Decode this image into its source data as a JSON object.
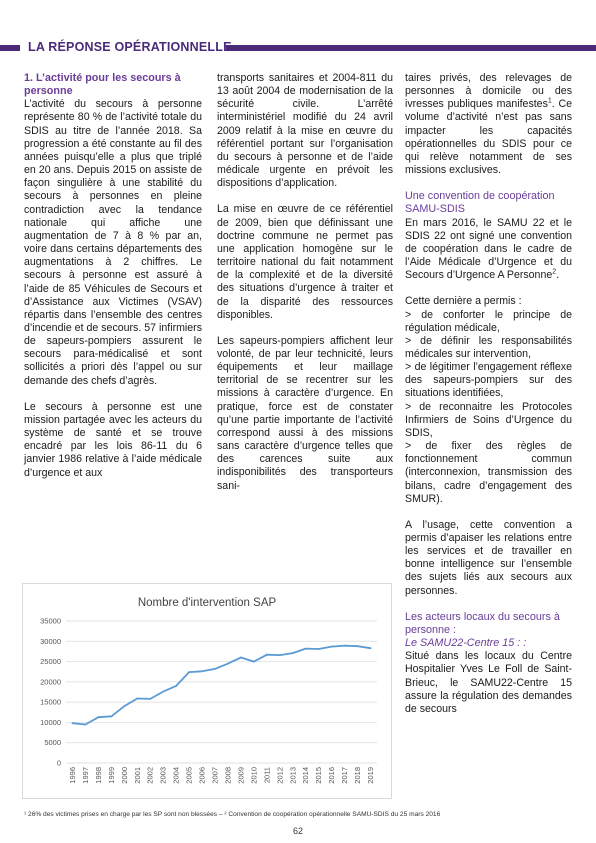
{
  "header": {
    "title": "LA RÉPONSE OPÉRATIONNELLE"
  },
  "col1": {
    "heading": "1. L’activité pour les secours à personne",
    "p1": "L’activité du secours à personne représente 80 % de l’activité totale du SDIS au titre de l’année 2018. Sa progression a été constante au fil des années puisqu’elle a plus que triplé en 20 ans. Depuis 2015 on assiste de façon singulière à une stabilité du secours à personnes en pleine contradiction avec la tendance nationale qui affiche une augmentation de 7 à 8 % par an, voire dans certains départements des augmentations à 2 chiffres. Le secours à personne est assuré à l’aide de 85 Véhicules de Secours et d’Assistance aux Victimes (VSAV) répartis dans l’ensemble des centres d’incendie et de secours. 57 infirmiers de sapeurs-pompiers assurent le secours para-médicalisé et sont sollicités a priori dès l’appel ou sur demande des chefs d’agrès.",
    "p2": "Le secours à personne est une mission partagée avec les acteurs du système de santé et se trouve encadré par les lois 86-11 du 6 janvier 1986 relative à l’aide médicale d’urgence et aux"
  },
  "col2": {
    "p1": "transports sanitaires et 2004-811 du 13 août 2004 de modernisation de la sécurité civile. L’arrêté interministériel modifié du 24 avril 2009 relatif à la mise en œuvre du référentiel portant sur l’organisation du secours à personne et de l’aide médicale urgente en prévoit les dispositions d’application.",
    "p2": "La mise en œuvre de ce référentiel de 2009, bien que définissant une doctrine commune ne permet pas une application homogène sur le territoire national du fait notamment de la complexité et de la diversité des situations d’urgence à traiter et de la disparité des ressources disponibles.",
    "p3": "Les sapeurs-pompiers affichent leur volonté, de par leur technicité, leurs équipements et leur maillage territorial de se recentrer sur les missions à caractère d’urgence. En pratique, force est de constater qu’une partie importante de l’activité correspond aussi à des missions sans caractère d’urgence telles que des carences suite aux indisponibilités des transporteurs sani-"
  },
  "col3": {
    "p1": "taires privés, des relevages de personnes à domicile ou des ivresses publiques manifestes",
    "p1_sup": "1",
    "p1_end": ". Ce volume d’activité n’est pas sans impacter les capacités opérationnelles du SDIS pour ce qui relève notamment de ses missions exclusives.",
    "h2": "Une convention de coopération SAMU-SDIS",
    "p2": "En mars 2016, le SAMU 22 et le SDIS 22 ont signé une convention de coopération dans le cadre de l’Aide Médicale d’Urgence et du Secours d’Urgence A Personne",
    "p2_sup": "2",
    "p2_end": ".",
    "p3_intro": "Cette dernière a permis :",
    "bullets": [
      "> de conforter le principe de régulation médicale,",
      "> de définir les responsabilités médicales sur intervention,",
      "> de légitimer l’engagement réflexe des sapeurs-pompiers sur des situations identifiées,",
      "> de reconnaitre les Protocoles Infirmiers de Soins d’Urgence du SDIS,",
      "> de fixer des règles de fonctionnement commun (interconnexion, transmission des bilans, cadre d’engagement des SMUR)."
    ],
    "p4": "A l’usage, cette convention a permis d’apaiser les relations entre les services et de travailler en bonne intelligence sur l’ensemble des sujets liés aux secours aux personnes.",
    "h3": "Les acteurs locaux du secours à personne :",
    "h3_sub": "Le SAMU22-Centre 15 : :",
    "p5": "Situé dans les locaux du Centre Hospitalier Yves Le Foll de Saint-Brieuc, le SAMU22-Centre 15 assure la régulation des demandes de secours"
  },
  "chart_data": {
    "type": "line",
    "title": "Nombre d'intervention SAP",
    "categories": [
      "1996",
      "1997",
      "1998",
      "1999",
      "2000",
      "2001",
      "2002",
      "2003",
      "2004",
      "2005",
      "2006",
      "2007",
      "2008",
      "2009",
      "2010",
      "2011",
      "2012",
      "2013",
      "2014",
      "2015",
      "2016",
      "2017",
      "2018",
      "2019"
    ],
    "values": [
      9800,
      9500,
      11300,
      11500,
      14000,
      15900,
      15800,
      17600,
      19000,
      22400,
      22600,
      23200,
      24500,
      26000,
      25000,
      26700,
      26600,
      27100,
      28200,
      28100,
      28700,
      28900,
      28800,
      28300
    ],
    "yticks": [
      "0",
      "5000",
      "10000",
      "15000",
      "20000",
      "25000",
      "30000",
      "35000"
    ],
    "ylim": [
      0,
      35000
    ],
    "grid": true,
    "color": "#5b9bd5"
  },
  "footnote": "¹ 26% des victimes prises en charge par les SP sont non blessées – ² Convention de coopération opérationnelle SAMU-SDIS du 25 mars 2016",
  "page_number": "62"
}
